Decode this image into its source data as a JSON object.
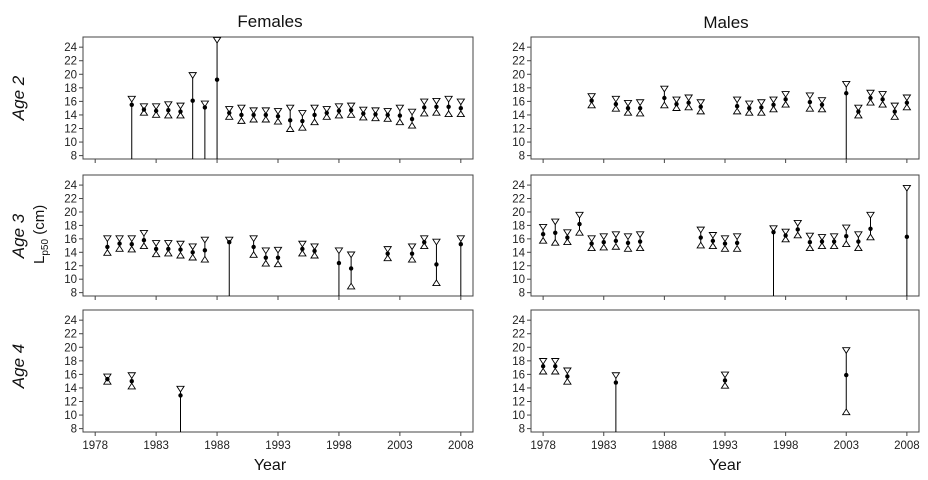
{
  "figure": {
    "column_titles": [
      "Females",
      "Males"
    ],
    "row_labels": [
      "Age 2",
      "Age 3",
      "Age 4"
    ],
    "x_title": "Year",
    "y_label_main": "L",
    "y_label_sub": "p50",
    "y_label_unit": " (cm)",
    "colors": {
      "ink": "#000000",
      "frame": "#444444"
    }
  },
  "chart_data": [
    {
      "type": "scatter",
      "panel": "Females, Age 2",
      "xlim": [
        1977,
        2009
      ],
      "ylim": [
        7.5,
        25.5
      ],
      "x_ticks": [
        1978,
        1983,
        1988,
        1993,
        1998,
        2003,
        2008
      ],
      "y_ticks": [
        8,
        10,
        12,
        14,
        16,
        18,
        20,
        22,
        24
      ],
      "points": [
        {
          "x": 1981,
          "y": 15.5,
          "lo": 7.5,
          "hi": 16.3
        },
        {
          "x": 1982,
          "y": 14.8,
          "lo": 14.4,
          "hi": 15.2
        },
        {
          "x": 1983,
          "y": 14.6,
          "lo": 14.1,
          "hi": 15.2
        },
        {
          "x": 1984,
          "y": 14.7,
          "lo": 14.0,
          "hi": 15.5
        },
        {
          "x": 1985,
          "y": 14.5,
          "lo": 14.0,
          "hi": 15.3
        },
        {
          "x": 1986,
          "y": 16.1,
          "lo": 7.5,
          "hi": 19.8
        },
        {
          "x": 1987,
          "y": 15.1,
          "lo": 7.5,
          "hi": 15.6
        },
        {
          "x": 1988,
          "y": 19.2,
          "lo": 7.5,
          "hi": 25.0
        },
        {
          "x": 1989,
          "y": 14.3,
          "lo": 13.8,
          "hi": 14.8
        },
        {
          "x": 1990,
          "y": 14.0,
          "lo": 13.2,
          "hi": 15.0
        },
        {
          "x": 1991,
          "y": 14.0,
          "lo": 13.4,
          "hi": 14.6
        },
        {
          "x": 1992,
          "y": 14.0,
          "lo": 13.4,
          "hi": 14.6
        },
        {
          "x": 1993,
          "y": 13.8,
          "lo": 13.1,
          "hi": 14.5
        },
        {
          "x": 1994,
          "y": 13.2,
          "lo": 12.0,
          "hi": 15.0
        },
        {
          "x": 1995,
          "y": 13.1,
          "lo": 12.2,
          "hi": 14.2
        },
        {
          "x": 1996,
          "y": 14.0,
          "lo": 13.0,
          "hi": 15.0
        },
        {
          "x": 1997,
          "y": 14.3,
          "lo": 13.8,
          "hi": 14.8
        },
        {
          "x": 1998,
          "y": 14.6,
          "lo": 14.0,
          "hi": 15.2
        },
        {
          "x": 1999,
          "y": 14.7,
          "lo": 14.1,
          "hi": 15.3
        },
        {
          "x": 2000,
          "y": 14.2,
          "lo": 13.7,
          "hi": 14.7
        },
        {
          "x": 2001,
          "y": 14.1,
          "lo": 13.6,
          "hi": 14.6
        },
        {
          "x": 2002,
          "y": 14.0,
          "lo": 13.5,
          "hi": 14.5
        },
        {
          "x": 2003,
          "y": 13.9,
          "lo": 13.0,
          "hi": 15.0
        },
        {
          "x": 2004,
          "y": 13.4,
          "lo": 12.5,
          "hi": 14.4
        },
        {
          "x": 2005,
          "y": 15.1,
          "lo": 14.3,
          "hi": 15.9
        },
        {
          "x": 2006,
          "y": 15.2,
          "lo": 14.4,
          "hi": 16.0
        },
        {
          "x": 2007,
          "y": 15.2,
          "lo": 14.2,
          "hi": 16.3
        },
        {
          "x": 2008,
          "y": 15.0,
          "lo": 14.2,
          "hi": 15.9
        }
      ]
    },
    {
      "type": "scatter",
      "panel": "Males, Age 2",
      "xlim": [
        1977,
        2009
      ],
      "ylim": [
        7.5,
        25.5
      ],
      "x_ticks": [
        1978,
        1983,
        1988,
        1993,
        1998,
        2003,
        2008
      ],
      "y_ticks": [
        8,
        10,
        12,
        14,
        16,
        18,
        20,
        22,
        24
      ],
      "points": [
        {
          "x": 1982,
          "y": 16.1,
          "lo": 15.5,
          "hi": 16.7
        },
        {
          "x": 1984,
          "y": 15.6,
          "lo": 15.0,
          "hi": 16.3
        },
        {
          "x": 1985,
          "y": 15.0,
          "lo": 14.4,
          "hi": 15.7
        },
        {
          "x": 1986,
          "y": 15.0,
          "lo": 14.3,
          "hi": 15.8
        },
        {
          "x": 1988,
          "y": 16.5,
          "lo": 15.5,
          "hi": 17.8
        },
        {
          "x": 1989,
          "y": 15.6,
          "lo": 15.1,
          "hi": 16.2
        },
        {
          "x": 1990,
          "y": 15.8,
          "lo": 15.2,
          "hi": 16.5
        },
        {
          "x": 1991,
          "y": 15.2,
          "lo": 14.6,
          "hi": 15.8
        },
        {
          "x": 1994,
          "y": 15.3,
          "lo": 14.6,
          "hi": 16.2
        },
        {
          "x": 1995,
          "y": 15.0,
          "lo": 14.4,
          "hi": 15.6
        },
        {
          "x": 1996,
          "y": 15.1,
          "lo": 14.4,
          "hi": 15.8
        },
        {
          "x": 1997,
          "y": 15.5,
          "lo": 14.9,
          "hi": 16.2
        },
        {
          "x": 1998,
          "y": 16.3,
          "lo": 15.6,
          "hi": 17.0
        },
        {
          "x": 2000,
          "y": 15.9,
          "lo": 15.0,
          "hi": 16.8
        },
        {
          "x": 2001,
          "y": 15.5,
          "lo": 14.9,
          "hi": 16.1
        },
        {
          "x": 2003,
          "y": 17.2,
          "lo": 7.5,
          "hi": 18.5
        },
        {
          "x": 2004,
          "y": 14.5,
          "lo": 14.0,
          "hi": 15.0
        },
        {
          "x": 2005,
          "y": 16.5,
          "lo": 15.9,
          "hi": 17.2
        },
        {
          "x": 2006,
          "y": 16.3,
          "lo": 15.6,
          "hi": 17.0
        },
        {
          "x": 2007,
          "y": 14.5,
          "lo": 13.8,
          "hi": 15.3
        },
        {
          "x": 2008,
          "y": 15.8,
          "lo": 15.2,
          "hi": 16.5
        }
      ]
    },
    {
      "type": "scatter",
      "panel": "Females, Age 3",
      "xlim": [
        1977,
        2009
      ],
      "ylim": [
        7.5,
        25.5
      ],
      "x_ticks": [
        1978,
        1983,
        1988,
        1993,
        1998,
        2003,
        2008
      ],
      "y_ticks": [
        8,
        10,
        12,
        14,
        16,
        18,
        20,
        22,
        24
      ],
      "points": [
        {
          "x": 1979,
          "y": 14.8,
          "lo": 14.0,
          "hi": 16.0
        },
        {
          "x": 1980,
          "y": 15.3,
          "lo": 14.6,
          "hi": 16.0
        },
        {
          "x": 1981,
          "y": 15.2,
          "lo": 14.5,
          "hi": 16.0
        },
        {
          "x": 1982,
          "y": 15.8,
          "lo": 15.0,
          "hi": 16.8
        },
        {
          "x": 1983,
          "y": 14.5,
          "lo": 13.8,
          "hi": 15.3
        },
        {
          "x": 1984,
          "y": 14.5,
          "lo": 13.9,
          "hi": 15.3
        },
        {
          "x": 1985,
          "y": 14.4,
          "lo": 13.6,
          "hi": 15.2
        },
        {
          "x": 1986,
          "y": 14.0,
          "lo": 13.3,
          "hi": 14.8
        },
        {
          "x": 1987,
          "y": 14.3,
          "lo": 13.0,
          "hi": 15.8
        },
        {
          "x": 1989,
          "y": 15.5,
          "lo": 7.5,
          "hi": 15.8
        },
        {
          "x": 1991,
          "y": 14.8,
          "lo": 13.7,
          "hi": 16.0
        },
        {
          "x": 1992,
          "y": 13.2,
          "lo": 12.4,
          "hi": 14.2
        },
        {
          "x": 1993,
          "y": 13.2,
          "lo": 12.3,
          "hi": 14.3
        },
        {
          "x": 1995,
          "y": 14.5,
          "lo": 13.9,
          "hi": 15.2
        },
        {
          "x": 1996,
          "y": 14.2,
          "lo": 13.6,
          "hi": 14.8
        },
        {
          "x": 1998,
          "y": 12.4,
          "lo": 7.5,
          "hi": 14.2
        },
        {
          "x": 1999,
          "y": 11.6,
          "lo": 9.0,
          "hi": 13.6
        },
        {
          "x": 2002,
          "y": 13.8,
          "lo": 13.2,
          "hi": 14.4
        },
        {
          "x": 2004,
          "y": 13.8,
          "lo": 13.0,
          "hi": 14.8
        },
        {
          "x": 2005,
          "y": 15.5,
          "lo": 15.0,
          "hi": 16.0
        },
        {
          "x": 2006,
          "y": 12.2,
          "lo": 9.5,
          "hi": 15.5
        },
        {
          "x": 2008,
          "y": 15.2,
          "lo": 7.5,
          "hi": 16.0
        }
      ]
    },
    {
      "type": "scatter",
      "panel": "Males, Age 3",
      "xlim": [
        1977,
        2009
      ],
      "ylim": [
        7.5,
        25.5
      ],
      "x_ticks": [
        1978,
        1983,
        1988,
        1993,
        1998,
        2003,
        2008
      ],
      "y_ticks": [
        8,
        10,
        12,
        14,
        16,
        18,
        20,
        22,
        24
      ],
      "points": [
        {
          "x": 1978,
          "y": 16.7,
          "lo": 15.8,
          "hi": 17.7
        },
        {
          "x": 1979,
          "y": 16.9,
          "lo": 15.5,
          "hi": 18.5
        },
        {
          "x": 1980,
          "y": 16.2,
          "lo": 15.6,
          "hi": 16.9
        },
        {
          "x": 1981,
          "y": 18.2,
          "lo": 17.0,
          "hi": 19.5
        },
        {
          "x": 1982,
          "y": 15.3,
          "lo": 14.7,
          "hi": 16.0
        },
        {
          "x": 1983,
          "y": 15.5,
          "lo": 14.8,
          "hi": 16.3
        },
        {
          "x": 1984,
          "y": 15.7,
          "lo": 14.9,
          "hi": 16.6
        },
        {
          "x": 1985,
          "y": 15.4,
          "lo": 14.6,
          "hi": 16.3
        },
        {
          "x": 1986,
          "y": 15.6,
          "lo": 14.7,
          "hi": 16.6
        },
        {
          "x": 1991,
          "y": 16.2,
          "lo": 15.1,
          "hi": 17.3
        },
        {
          "x": 1992,
          "y": 15.7,
          "lo": 15.0,
          "hi": 16.5
        },
        {
          "x": 1993,
          "y": 15.3,
          "lo": 14.6,
          "hi": 16.0
        },
        {
          "x": 1994,
          "y": 15.4,
          "lo": 14.6,
          "hi": 16.3
        },
        {
          "x": 1997,
          "y": 17.0,
          "lo": 7.5,
          "hi": 17.5
        },
        {
          "x": 1998,
          "y": 16.5,
          "lo": 16.0,
          "hi": 17.0
        },
        {
          "x": 1999,
          "y": 17.4,
          "lo": 16.6,
          "hi": 18.3
        },
        {
          "x": 2000,
          "y": 15.5,
          "lo": 14.7,
          "hi": 16.4
        },
        {
          "x": 2001,
          "y": 15.6,
          "lo": 15.0,
          "hi": 16.2
        },
        {
          "x": 2002,
          "y": 15.6,
          "lo": 15.0,
          "hi": 16.3
        },
        {
          "x": 2003,
          "y": 16.4,
          "lo": 15.3,
          "hi": 17.6
        },
        {
          "x": 2004,
          "y": 15.6,
          "lo": 14.7,
          "hi": 16.6
        },
        {
          "x": 2005,
          "y": 17.5,
          "lo": 16.3,
          "hi": 19.5
        },
        {
          "x": 2008,
          "y": 16.3,
          "lo": 7.5,
          "hi": 23.5
        }
      ]
    },
    {
      "type": "scatter",
      "panel": "Females, Age 4",
      "xlim": [
        1977,
        2009
      ],
      "ylim": [
        7.5,
        25.5
      ],
      "x_ticks": [
        1978,
        1983,
        1988,
        1993,
        1998,
        2003,
        2008
      ],
      "y_ticks": [
        8,
        10,
        12,
        14,
        16,
        18,
        20,
        22,
        24
      ],
      "points": [
        {
          "x": 1979,
          "y": 15.3,
          "lo": 15.0,
          "hi": 15.6
        },
        {
          "x": 1981,
          "y": 15.0,
          "lo": 14.3,
          "hi": 15.8
        },
        {
          "x": 1985,
          "y": 12.9,
          "lo": 7.5,
          "hi": 13.8
        }
      ]
    },
    {
      "type": "scatter",
      "panel": "Males, Age 4",
      "xlim": [
        1977,
        2009
      ],
      "ylim": [
        7.5,
        25.5
      ],
      "x_ticks": [
        1978,
        1983,
        1988,
        1993,
        1998,
        2003,
        2008
      ],
      "y_ticks": [
        8,
        10,
        12,
        14,
        16,
        18,
        20,
        22,
        24
      ],
      "points": [
        {
          "x": 1978,
          "y": 17.2,
          "lo": 16.5,
          "hi": 17.9
        },
        {
          "x": 1979,
          "y": 17.2,
          "lo": 16.5,
          "hi": 17.9
        },
        {
          "x": 1980,
          "y": 15.7,
          "lo": 15.0,
          "hi": 16.5
        },
        {
          "x": 1984,
          "y": 14.8,
          "lo": 7.5,
          "hi": 15.8
        },
        {
          "x": 1993,
          "y": 15.1,
          "lo": 14.4,
          "hi": 15.9
        },
        {
          "x": 2003,
          "y": 15.9,
          "lo": 10.5,
          "hi": 19.5
        }
      ]
    }
  ]
}
